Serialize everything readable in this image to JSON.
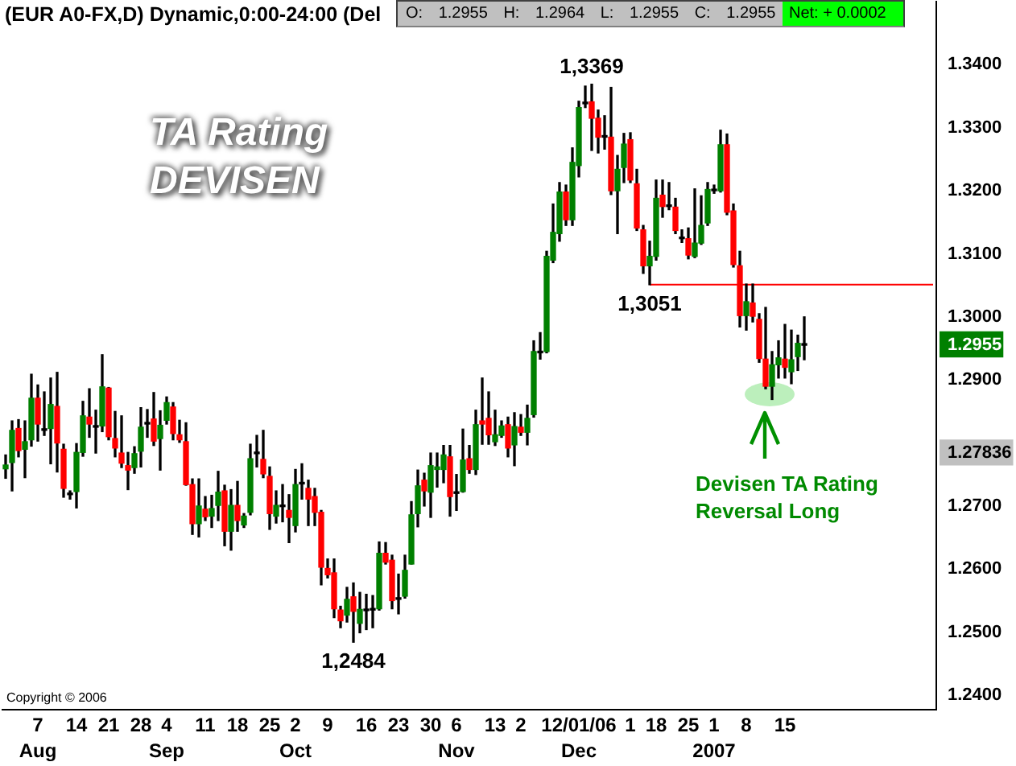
{
  "chart_data": {
    "type": "candlestick",
    "title": "(EUR A0-FX,D) Dynamic,0:00-24:00 (Del",
    "subtitle": "O: 1.2955 H: 1.2964 L: 1.2955 C: 1.2955",
    "categories": [
      null,
      null,
      null,
      null,
      null,
      "7\nAug",
      null,
      null,
      null,
      null,
      null,
      "14",
      null,
      null,
      null,
      null,
      "21",
      null,
      null,
      null,
      null,
      "28",
      null,
      null,
      null,
      "4\nSep",
      null,
      null,
      null,
      null,
      null,
      "11",
      null,
      null,
      null,
      null,
      "18",
      null,
      null,
      null,
      null,
      "25",
      null,
      null,
      null,
      "2\nOct",
      null,
      null,
      null,
      null,
      "9",
      null,
      null,
      null,
      null,
      null,
      "16",
      null,
      null,
      null,
      null,
      "23",
      null,
      null,
      null,
      null,
      "30",
      null,
      null,
      null,
      "6\nNov",
      null,
      null,
      null,
      null,
      null,
      "13",
      null,
      null,
      null,
      "2",
      null,
      null,
      null,
      null,
      null,
      null,
      null,
      null,
      "12/01/06\nDec",
      null,
      null,
      null,
      null,
      null,
      null,
      null,
      "1",
      null,
      null,
      null,
      "18",
      null,
      null,
      null,
      null,
      "25",
      null,
      null,
      null,
      "1\n2007",
      null,
      null,
      null,
      null,
      "8",
      null,
      null,
      null,
      null,
      null,
      "15",
      null,
      null,
      null,
      null,
      null,
      null,
      null,
      null,
      null,
      null,
      null,
      null,
      null,
      null,
      null,
      null,
      null,
      null,
      null,
      null,
      null,
      null,
      null
    ],
    "ohlc": [
      [
        1.2759,
        1.2781,
        1.2744,
        1.2765
      ],
      [
        1.2769,
        1.2835,
        1.2724,
        1.282
      ],
      [
        1.2823,
        1.2837,
        1.2778,
        1.2788
      ],
      [
        1.279,
        1.2835,
        1.2745,
        1.2802
      ],
      [
        1.2805,
        1.2909,
        1.2795,
        1.2871
      ],
      [
        1.2871,
        1.2892,
        1.2803,
        1.283
      ],
      [
        1.282,
        1.2881,
        1.2812,
        1.282
      ],
      [
        1.2823,
        1.2903,
        1.2767,
        1.2861
      ],
      [
        1.2858,
        1.2912,
        1.2754,
        1.28
      ],
      [
        1.279,
        1.2798,
        1.2714,
        1.2728
      ],
      [
        1.2718,
        1.2724,
        1.2711,
        1.2718
      ],
      [
        1.2723,
        1.2799,
        1.2697,
        1.2785
      ],
      [
        1.2785,
        1.2866,
        1.2779,
        1.2843
      ],
      [
        1.2841,
        1.2886,
        1.2809,
        1.283
      ],
      [
        1.2825,
        1.2852,
        1.2784,
        1.2825
      ],
      [
        1.2827,
        1.294,
        1.2818,
        1.2889
      ],
      [
        1.2887,
        1.2888,
        1.2805,
        1.281
      ],
      [
        1.2807,
        1.285,
        1.2778,
        1.2792
      ],
      [
        1.2784,
        1.2843,
        1.2761,
        1.2768
      ],
      [
        1.2764,
        1.2785,
        1.2726,
        1.2757
      ],
      [
        1.2761,
        1.2794,
        1.2752,
        1.2783
      ],
      [
        1.2787,
        1.2856,
        1.2762,
        1.2825
      ],
      [
        1.283,
        1.2853,
        1.2809,
        1.283
      ],
      [
        1.2838,
        1.288,
        1.2796,
        1.2803
      ],
      [
        1.2807,
        1.2851,
        1.2757,
        1.2828
      ],
      [
        1.2836,
        1.2873,
        1.283,
        1.2864
      ],
      [
        1.2857,
        1.2864,
        1.2805,
        1.2815
      ],
      [
        1.2813,
        1.2836,
        1.2801,
        1.2805
      ],
      [
        1.2802,
        1.2832,
        1.2733,
        1.2734
      ],
      [
        1.2734,
        1.2743,
        1.2655,
        1.2672
      ],
      [
        1.2672,
        1.2743,
        1.2651,
        1.27
      ],
      [
        1.2695,
        1.2715,
        1.2677,
        1.2683
      ],
      [
        1.2684,
        1.2717,
        1.2666,
        1.2696
      ],
      [
        1.2701,
        1.2755,
        1.2677,
        1.2722
      ],
      [
        1.2724,
        1.2733,
        1.2637,
        1.266
      ],
      [
        1.266,
        1.2726,
        1.263,
        1.2701
      ],
      [
        1.2701,
        1.2739,
        1.266,
        1.2677
      ],
      [
        1.267,
        1.2688,
        1.2666,
        1.2684
      ],
      [
        1.269,
        1.2798,
        1.2686,
        1.2775
      ],
      [
        1.2783,
        1.2812,
        1.2762,
        1.2783
      ],
      [
        1.2774,
        1.282,
        1.2745,
        1.2751
      ],
      [
        1.2747,
        1.2762,
        1.2663,
        1.2688
      ],
      [
        1.2684,
        1.2724,
        1.2673,
        1.2701
      ],
      [
        1.2699,
        1.2734,
        1.2675,
        1.2699
      ],
      [
        1.2693,
        1.2718,
        1.2642,
        1.2682
      ],
      [
        1.2669,
        1.2758,
        1.2659,
        1.2734
      ],
      [
        1.2735,
        1.2767,
        1.2711,
        1.2735
      ],
      [
        1.2728,
        1.2741,
        1.2669,
        1.2711
      ],
      [
        1.2715,
        1.2728,
        1.2669,
        1.269
      ],
      [
        1.269,
        1.2693,
        1.2575,
        1.2603
      ],
      [
        1.2601,
        1.2616,
        1.2586,
        1.2591
      ],
      [
        1.2594,
        1.2616,
        1.2523,
        1.2537
      ],
      [
        1.2535,
        1.2541,
        1.2507,
        1.2518
      ],
      [
        1.2527,
        1.2571,
        1.2516,
        1.2552
      ],
      [
        1.2556,
        1.2578,
        1.2484,
        1.2533
      ],
      [
        1.2514,
        1.2563,
        1.2499,
        1.2536
      ],
      [
        1.2534,
        1.256,
        1.2504,
        1.2534
      ],
      [
        1.2535,
        1.2558,
        1.2507,
        1.2535
      ],
      [
        1.2537,
        1.2643,
        1.2535,
        1.2625
      ],
      [
        1.2625,
        1.2642,
        1.2608,
        1.2611
      ],
      [
        1.2614,
        1.2622,
        1.2537,
        1.255
      ],
      [
        1.2552,
        1.2592,
        1.2529,
        1.2552
      ],
      [
        1.2557,
        1.2622,
        1.2554,
        1.2598
      ],
      [
        1.2608,
        1.2707,
        1.2608,
        1.2686
      ],
      [
        1.2688,
        1.2757,
        1.2667,
        1.2732
      ],
      [
        1.2741,
        1.2752,
        1.27,
        1.2724
      ],
      [
        1.2722,
        1.2784,
        1.2682,
        1.2764
      ],
      [
        1.2758,
        1.2784,
        1.273,
        1.2762
      ],
      [
        1.2758,
        1.2796,
        1.2737,
        1.2781
      ],
      [
        1.2778,
        1.2796,
        1.2684,
        1.2715
      ],
      [
        1.272,
        1.275,
        1.2693,
        1.272
      ],
      [
        1.2723,
        1.2822,
        1.2722,
        1.2773
      ],
      [
        1.2775,
        1.2796,
        1.2752,
        1.2758
      ],
      [
        1.2758,
        1.2852,
        1.275,
        1.2829
      ],
      [
        1.2835,
        1.2903,
        1.2798,
        1.283
      ],
      [
        1.2839,
        1.2881,
        1.2798,
        1.2813
      ],
      [
        1.2802,
        1.2852,
        1.2796,
        1.2813
      ],
      [
        1.2812,
        1.2835,
        1.2809,
        1.2827
      ],
      [
        1.2829,
        1.2841,
        1.2778,
        1.2792
      ],
      [
        1.2797,
        1.2848,
        1.2764,
        1.2826
      ],
      [
        1.2825,
        1.2845,
        1.2812,
        1.2817
      ],
      [
        1.2817,
        1.286,
        1.2797,
        1.2839
      ],
      [
        1.2845,
        1.2962,
        1.2841,
        1.2945
      ],
      [
        1.2943,
        1.2975,
        1.2933,
        1.2943
      ],
      [
        1.2945,
        1.3104,
        1.2943,
        1.3096
      ],
      [
        1.309,
        1.3179,
        1.3086,
        1.3134
      ],
      [
        1.3132,
        1.3213,
        1.312,
        1.3198
      ],
      [
        1.3198,
        1.3209,
        1.3145,
        1.3154
      ],
      [
        1.3154,
        1.3268,
        1.3145,
        1.3245
      ],
      [
        1.324,
        1.3342,
        1.3222,
        1.3332
      ],
      [
        1.3338,
        1.3366,
        1.3332,
        1.3338
      ],
      [
        1.3341,
        1.3369,
        1.3264,
        1.3315
      ],
      [
        1.3315,
        1.3328,
        1.326,
        1.3285
      ],
      [
        1.3285,
        1.3319,
        1.3266,
        1.3285
      ],
      [
        1.3285,
        1.3364,
        1.3194,
        1.32
      ],
      [
        1.32,
        1.3256,
        1.3132,
        1.3234
      ],
      [
        1.3237,
        1.3291,
        1.3213,
        1.3274
      ],
      [
        1.3281,
        1.3292,
        1.3213,
        1.3217
      ],
      [
        1.3211,
        1.3234,
        1.3137,
        1.3141
      ],
      [
        1.3138,
        1.3145,
        1.3069,
        1.3081
      ],
      [
        1.3081,
        1.312,
        1.3051,
        1.3096
      ],
      [
        1.3096,
        1.3217,
        1.309,
        1.3188
      ],
      [
        1.3193,
        1.3217,
        1.3158,
        1.3175
      ],
      [
        1.3175,
        1.3213,
        1.317,
        1.3175
      ],
      [
        1.3174,
        1.3188,
        1.3132,
        1.3137
      ],
      [
        1.3124,
        1.3138,
        1.3118,
        1.3124
      ],
      [
        1.3124,
        1.3141,
        1.3092,
        1.3098
      ],
      [
        1.3096,
        1.3203,
        1.3094,
        1.3117
      ],
      [
        1.3117,
        1.3192,
        1.3115,
        1.3145
      ],
      [
        1.3149,
        1.3213,
        1.3145,
        1.3202
      ],
      [
        1.32,
        1.3209,
        1.3196,
        1.32
      ],
      [
        1.32,
        1.3296,
        1.3198,
        1.3273
      ],
      [
        1.3273,
        1.329,
        1.3162,
        1.3166
      ],
      [
        1.3168,
        1.3179,
        1.3079,
        1.3083
      ],
      [
        1.3081,
        1.3104,
        1.2984,
        1.3002
      ],
      [
        1.3002,
        1.3052,
        1.2979,
        1.3024
      ],
      [
        1.3022,
        1.3052,
        1.2992,
        1.3001
      ],
      [
        1.2996,
        1.3005,
        1.2928,
        1.2934
      ],
      [
        1.2933,
        1.3015,
        1.2886,
        1.289
      ],
      [
        1.289,
        1.2945,
        1.2869,
        1.2924
      ],
      [
        1.2924,
        1.2962,
        1.2903,
        1.2935
      ],
      [
        1.2933,
        1.2988,
        1.2903,
        1.292
      ],
      [
        1.2913,
        1.2979,
        1.2894,
        1.2932
      ],
      [
        1.2937,
        1.2971,
        1.2915,
        1.2958
      ],
      [
        1.2955,
        1.3,
        1.2932,
        1.2955
      ],
      null,
      null,
      null,
      null,
      null,
      null,
      null,
      null,
      null,
      null,
      null,
      null,
      null,
      null,
      null,
      null,
      null,
      null,
      null,
      null
    ],
    "colors": [
      "#008000",
      "#008000",
      "#ff0000",
      "#008000",
      "#008000",
      "#ff0000",
      "#000000",
      "#008000",
      "#ff0000",
      "#ff0000",
      "#000000",
      "#008000",
      "#008000",
      "#ff0000",
      "#000000",
      "#008000",
      "#ff0000",
      "#ff0000",
      "#ff0000",
      "#ff0000",
      "#008000",
      "#008000",
      "#000000",
      "#ff0000",
      "#008000",
      "#008000",
      "#ff0000",
      "#ff0000",
      "#ff0000",
      "#ff0000",
      "#008000",
      "#ff0000",
      "#008000",
      "#008000",
      "#ff0000",
      "#008000",
      "#ff0000",
      "#008000",
      "#008000",
      "#000000",
      "#ff0000",
      "#ff0000",
      "#008000",
      "#000000",
      "#ff0000",
      "#008000",
      "#000000",
      "#ff0000",
      "#ff0000",
      "#ff0000",
      "#ff0000",
      "#ff0000",
      "#ff0000",
      "#008000",
      "#ff0000",
      "#008000",
      "#000000",
      "#000000",
      "#008000",
      "#ff0000",
      "#ff0000",
      "#000000",
      "#008000",
      "#008000",
      "#008000",
      "#ff0000",
      "#008000",
      "#008000",
      "#008000",
      "#ff0000",
      "#000000",
      "#008000",
      "#ff0000",
      "#008000",
      "#ff0000",
      "#ff0000",
      "#008000",
      "#008000",
      "#ff0000",
      "#008000",
      "#ff0000",
      "#008000",
      "#008000",
      "#000000",
      "#008000",
      "#008000",
      "#008000",
      "#ff0000",
      "#008000",
      "#008000",
      "#000000",
      "#ff0000",
      "#ff0000",
      "#000000",
      "#ff0000",
      "#008000",
      "#008000",
      "#ff0000",
      "#ff0000",
      "#ff0000",
      "#008000",
      "#008000",
      "#ff0000",
      "#000000",
      "#ff0000",
      "#000000",
      "#ff0000",
      "#008000",
      "#008000",
      "#008000",
      "#000000",
      "#008000",
      "#ff0000",
      "#ff0000",
      "#ff0000",
      "#008000",
      "#ff0000",
      "#ff0000",
      "#ff0000",
      "#008000",
      "#008000",
      "#ff0000",
      "#008000",
      "#008000",
      "#000000",
      null,
      null,
      null,
      null,
      null,
      null,
      null,
      null,
      null,
      null,
      null,
      null,
      null,
      null,
      null,
      null,
      null,
      null,
      null,
      null
    ],
    "series": [
      {
        "type": "line",
        "color": "#ff0000",
        "values": [
          null,
          null,
          null,
          null,
          null,
          null,
          null,
          null,
          null,
          null,
          null,
          null,
          null,
          null,
          null,
          null,
          null,
          null,
          null,
          null,
          null,
          null,
          null,
          null,
          null,
          null,
          null,
          null,
          null,
          null,
          null,
          null,
          null,
          null,
          null,
          null,
          null,
          null,
          null,
          null,
          null,
          null,
          null,
          null,
          null,
          null,
          null,
          null,
          null,
          null,
          null,
          null,
          null,
          null,
          null,
          null,
          null,
          null,
          null,
          null,
          null,
          null,
          null,
          null,
          null,
          null,
          null,
          null,
          null,
          null,
          null,
          null,
          null,
          null,
          null,
          null,
          null,
          null,
          null,
          null,
          null,
          null,
          null,
          null,
          null,
          null,
          null,
          null,
          null,
          null,
          null,
          null,
          null,
          null,
          null,
          null,
          null,
          null,
          null,
          null,
          1.3051,
          1.3051,
          1.3051,
          1.3051,
          1.3051,
          1.3051,
          1.3051,
          1.3051,
          1.3051,
          1.3051,
          1.3051,
          1.3051,
          1.3051,
          1.3051,
          1.3051,
          1.3051,
          1.3051,
          1.3051,
          1.3051,
          1.3051,
          1.3051,
          1.3051,
          1.3051,
          1.3051,
          1.3051,
          1.3051,
          1.3051,
          1.3051,
          1.3051,
          1.3051,
          1.3051,
          1.3051,
          1.3051,
          1.3051,
          1.3051,
          1.3051,
          1.3051,
          1.3051,
          1.3051,
          1.3051,
          1.3051,
          1.3051,
          1.3051,
          1.3051,
          1.3051
        ]
      }
    ],
    "ylim": [
      1.2377,
      1.35
    ],
    "yticks": [
      {
        "value": 1.24,
        "label": "1.2400"
      },
      {
        "value": 1.25,
        "label": "1.2500"
      },
      {
        "value": 1.26,
        "label": "1.2600"
      },
      {
        "value": 1.27,
        "label": "1.2700"
      },
      1.27836,
      {
        "value": 1.29,
        "label": "1.2900"
      },
      1.2955,
      {
        "value": 1.3,
        "label": "1.3000"
      },
      {
        "value": 1.31,
        "label": "1.3100"
      },
      {
        "value": 1.32,
        "label": "1.3200"
      },
      {
        "value": 1.33,
        "label": "1.3300"
      },
      {
        "value": 1.34,
        "label": "1.3400"
      }
    ],
    "annotations": [
      "TA Rating",
      "DEVISEN",
      {
        "text": "1,3369",
        "y": 1.3369
      },
      {
        "text": "1,3051",
        "y": 1.3051
      },
      {
        "text": "1,2484",
        "y": 1.2484
      },
      "Devisen TA Rating Reversal Long",
      "Net: + 0.0002",
      "Copyright © 2006"
    ]
  }
}
